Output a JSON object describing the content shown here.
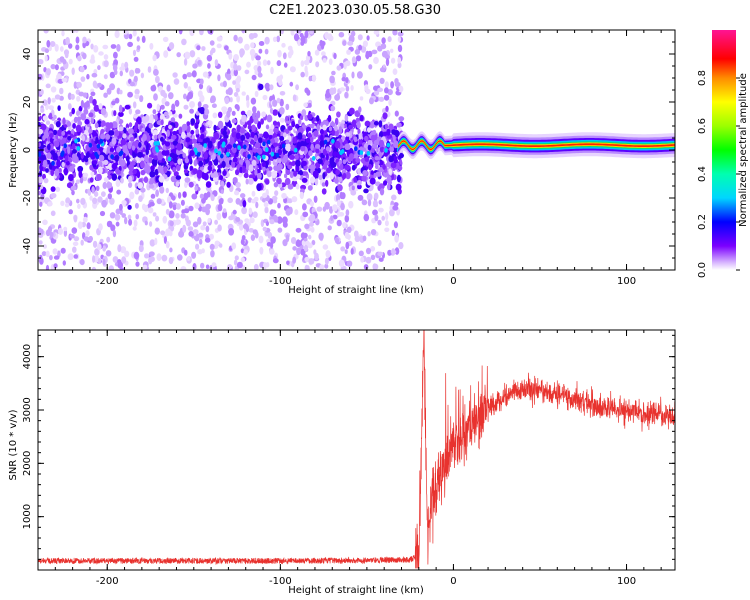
{
  "figure": {
    "title": "C2E1.2023.030.05.58.G30"
  },
  "chart_data": [
    {
      "type": "heatmap",
      "panel": "spectrogram",
      "xlabel": "Height of straight line (km)",
      "ylabel": "Frequency (Hz)",
      "xlim": [
        -240,
        128
      ],
      "ylim": [
        -50,
        50
      ],
      "xticks": [
        -200,
        -100,
        0,
        100
      ],
      "xtick_labels": [
        "-200",
        "-100",
        "0",
        "100"
      ],
      "yticks": [
        -40,
        -20,
        0,
        20,
        40
      ],
      "ytick_labels": [
        "-40",
        "-20",
        "0",
        "20",
        "40"
      ],
      "colorbar": {
        "label": "Normalized spectral amplitude",
        "range": [
          0,
          1
        ],
        "ticks": [
          0.0,
          0.2,
          0.4,
          0.6,
          0.8
        ],
        "tick_labels": [
          "0.0",
          "0.2",
          "0.4",
          "0.6",
          "0.8"
        ],
        "colormap": "rainbow"
      },
      "regions": [
        {
          "x": [
            -240,
            -30
          ],
          "freq_center": 0,
          "spread_hz": 50,
          "amplitude": 0.15,
          "description": "diffuse noise"
        },
        {
          "x": [
            -32,
            128
          ],
          "freq_center": 2,
          "spread_hz": 3,
          "amplitude": 0.9,
          "description": "narrow carrier line"
        }
      ]
    },
    {
      "type": "line",
      "panel": "snr",
      "xlabel": "Height of straight line (km)",
      "ylabel": "SNR (10 * v/v)",
      "xlim": [
        -240,
        128
      ],
      "ylim": [
        0,
        4500
      ],
      "xticks": [
        -200,
        -100,
        0,
        100
      ],
      "xtick_labels": [
        "-200",
        "-100",
        "0",
        "100"
      ],
      "yticks": [
        1000,
        2000,
        3000,
        4000
      ],
      "ytick_labels": [
        "1000",
        "2000",
        "3000",
        "4000"
      ],
      "series": [
        {
          "color": "#e8322e",
          "x": [
            -240,
            -200,
            -150,
            -100,
            -50,
            -25,
            -20,
            -19,
            -18,
            -17,
            -16,
            -15,
            -13,
            -10,
            -5,
            0,
            5,
            10,
            15,
            20,
            25,
            30,
            35,
            40,
            45,
            50,
            60,
            70,
            80,
            90,
            100,
            110,
            120,
            128
          ],
          "y": [
            150,
            150,
            150,
            150,
            160,
            170,
            250,
            1500,
            3200,
            4500,
            2500,
            500,
            1200,
            1600,
            2000,
            2300,
            2500,
            2650,
            2800,
            3000,
            3150,
            3250,
            3350,
            3400,
            3380,
            3350,
            3300,
            3200,
            3100,
            3050,
            3000,
            2950,
            2900,
            2880
          ]
        }
      ]
    }
  ]
}
